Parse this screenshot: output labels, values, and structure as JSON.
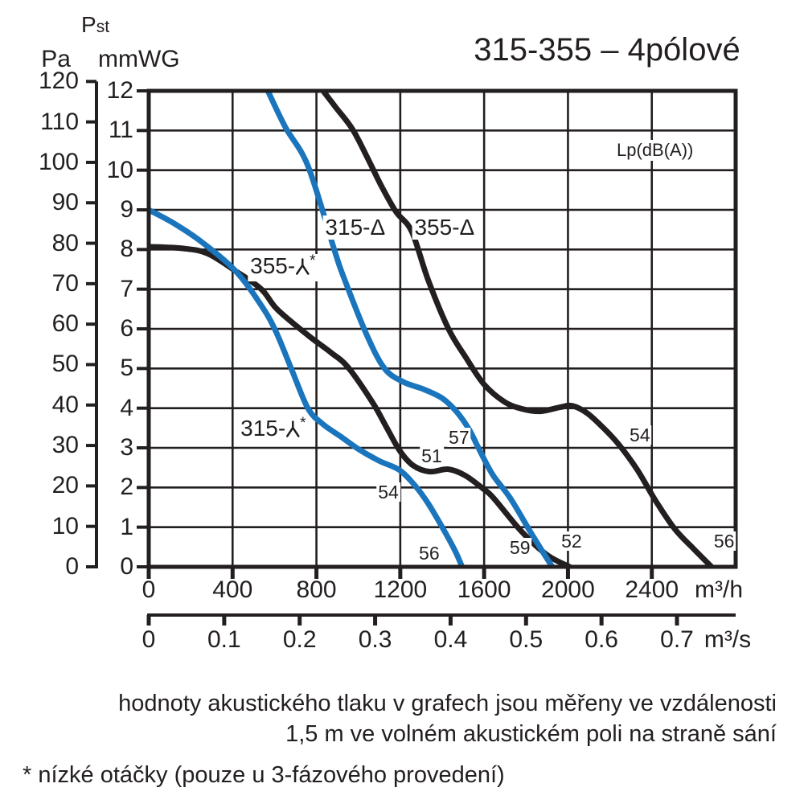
{
  "header": {
    "title": "315-355 – 4pólové"
  },
  "axis_labels": {
    "pst_main": "P",
    "pst_sub": "st",
    "pa_unit": "Pa",
    "mmwg_unit": "mmWG",
    "m3h_unit": "m³/h",
    "m3s_unit": "m³/s",
    "noise_note": "Lp(dB(A))"
  },
  "footnotes": {
    "line1": "hodnoty akustického tlaku v grafech jsou měřeny ve vzdálenosti",
    "line2": "1,5 m ve volném akustickém poli na straně sání",
    "star": "* nízké otáčky (pouze u 3-fázového provedení)"
  },
  "colors": {
    "blue": "#1b75bc",
    "black": "#231f20"
  },
  "chart_data": {
    "type": "line",
    "title": "315-355 – 4pólové",
    "x_axis": {
      "primary_unit": "m³/h",
      "primary_ticks": [
        0,
        400,
        800,
        1200,
        1600,
        2000,
        2400
      ],
      "secondary_unit": "m³/s",
      "secondary_tick_labels": [
        "0",
        "0.1",
        "0.2",
        "0.3",
        "0.4",
        "0.5",
        "0.6",
        "0.7"
      ],
      "range_m3h": [
        0,
        2800
      ],
      "grid": true
    },
    "y_axis": {
      "primary_unit": "Pa",
      "primary_ticks": [
        0,
        10,
        20,
        30,
        40,
        50,
        60,
        70,
        80,
        90,
        100,
        110,
        120
      ],
      "secondary_unit": "mmWG",
      "secondary_ticks": [
        0,
        1,
        2,
        3,
        4,
        5,
        6,
        7,
        8,
        9,
        10,
        11,
        12
      ],
      "range_mmwg": [
        0,
        12
      ],
      "grid": true,
      "quantity": "Pst"
    },
    "noise_unit": "Lp(dB(A))",
    "series": [
      {
        "id": "355-delta",
        "name": "355-Δ",
        "label_text": "355-Δ",
        "symbol": "delta",
        "sup": "",
        "label_at": [
          1411,
          8.56
        ],
        "color": "#231f20",
        "points_m3h_mmwg": [
          [
            810,
            12.15
          ],
          [
            890,
            11.6
          ],
          [
            970,
            11.05
          ],
          [
            1040,
            10.35
          ],
          [
            1110,
            9.6
          ],
          [
            1180,
            8.95
          ],
          [
            1255,
            8.45
          ],
          [
            1335,
            7.2
          ],
          [
            1430,
            6.0
          ],
          [
            1510,
            5.3
          ],
          [
            1600,
            4.6
          ],
          [
            1700,
            4.15
          ],
          [
            1790,
            3.97
          ],
          [
            1870,
            3.92
          ],
          [
            1960,
            4.02
          ],
          [
            2020,
            4.06
          ],
          [
            2090,
            3.88
          ],
          [
            2160,
            3.55
          ],
          [
            2240,
            3.1
          ],
          [
            2330,
            2.45
          ],
          [
            2420,
            1.65
          ],
          [
            2510,
            0.95
          ],
          [
            2600,
            0.45
          ],
          [
            2685,
            0
          ]
        ],
        "noise_labels": [
          {
            "text": "54",
            "at": [
              2343,
              3.33
            ]
          },
          {
            "text": "56",
            "at": [
              2745,
              0.65
            ]
          }
        ]
      },
      {
        "id": "355-wye",
        "name": "355-Y* (nízké otáčky)",
        "label_text": "355-",
        "symbol": "wye",
        "sup": "*",
        "label_at": [
          640,
          7.54
        ],
        "color": "#231f20",
        "points_m3h_mmwg": [
          [
            0,
            8.07
          ],
          [
            160,
            8.03
          ],
          [
            280,
            7.9
          ],
          [
            414,
            7.46
          ],
          [
            537,
            7.0
          ],
          [
            613,
            6.49
          ],
          [
            759,
            5.84
          ],
          [
            870,
            5.4
          ],
          [
            951,
            5.03
          ],
          [
            1066,
            4.16
          ],
          [
            1130,
            3.56
          ],
          [
            1196,
            2.94
          ],
          [
            1260,
            2.56
          ],
          [
            1340,
            2.4
          ],
          [
            1430,
            2.46
          ],
          [
            1510,
            2.3
          ],
          [
            1600,
            1.95
          ],
          [
            1646,
            1.73
          ],
          [
            1777,
            0.9
          ],
          [
            1900,
            0.3
          ],
          [
            2008,
            0
          ]
        ],
        "noise_labels": [
          {
            "text": "51",
            "at": [
              1350,
              2.8
            ]
          },
          {
            "text": "52",
            "at": [
              2017,
              0.65
            ]
          }
        ]
      },
      {
        "id": "315-delta",
        "name": "315-Δ",
        "label_text": "315-Δ",
        "symbol": "delta",
        "sup": "",
        "label_at": [
          985,
          8.56
        ],
        "color": "#1b75bc",
        "points_m3h_mmwg": [
          [
            555,
            12.15
          ],
          [
            650,
            11.1
          ],
          [
            760,
            10.1
          ],
          [
            885,
            8.0
          ],
          [
            930,
            7.3
          ],
          [
            1040,
            5.85
          ],
          [
            1125,
            5.0
          ],
          [
            1215,
            4.66
          ],
          [
            1310,
            4.48
          ],
          [
            1400,
            4.25
          ],
          [
            1470,
            3.9
          ],
          [
            1530,
            3.45
          ],
          [
            1570,
            3.03
          ],
          [
            1640,
            2.33
          ],
          [
            1725,
            1.73
          ],
          [
            1830,
            0.8
          ],
          [
            1925,
            0
          ]
        ],
        "noise_labels": [
          {
            "text": "57",
            "at": [
              1480,
              3.26
            ]
          },
          {
            "text": "59",
            "at": [
              1771,
              0.49
            ]
          }
        ]
      },
      {
        "id": "315-wye",
        "name": "315-Y* (nízké otáčky)",
        "label_text": "315-",
        "symbol": "wye",
        "sup": "*",
        "label_at": [
          594,
          3.45
        ],
        "color": "#1b75bc",
        "points_m3h_mmwg": [
          [
            0,
            9.0
          ],
          [
            120,
            8.66
          ],
          [
            250,
            8.2
          ],
          [
            414,
            7.46
          ],
          [
            537,
            6.59
          ],
          [
            606,
            5.94
          ],
          [
            682,
            4.97
          ],
          [
            759,
            4.0
          ],
          [
            830,
            3.6
          ],
          [
            920,
            3.27
          ],
          [
            1000,
            2.97
          ],
          [
            1100,
            2.67
          ],
          [
            1196,
            2.44
          ],
          [
            1270,
            2.05
          ],
          [
            1330,
            1.62
          ],
          [
            1400,
            1.0
          ],
          [
            1460,
            0.42
          ],
          [
            1495,
            0
          ]
        ],
        "noise_labels": [
          {
            "text": "54",
            "at": [
              1143,
              1.89
            ]
          },
          {
            "text": "56",
            "at": [
              1338,
              0.34
            ]
          }
        ]
      }
    ]
  }
}
